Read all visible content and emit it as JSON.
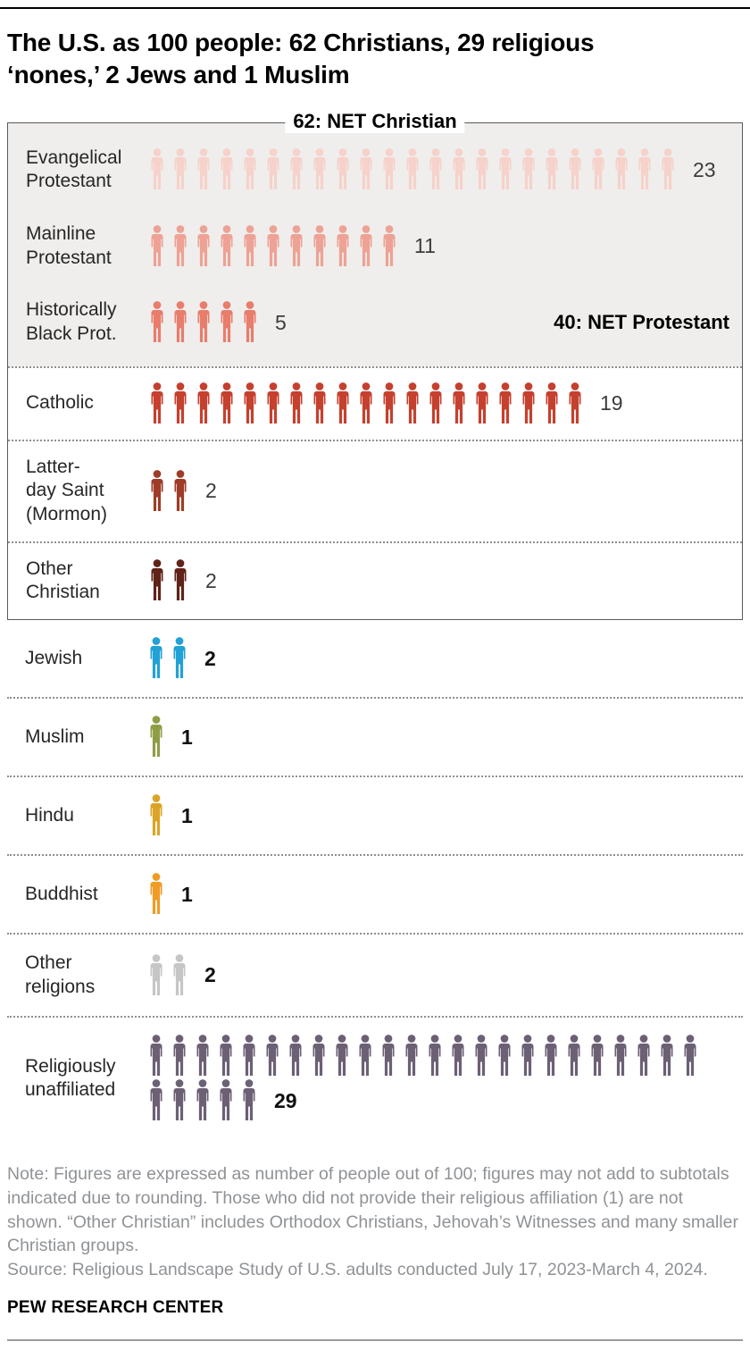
{
  "header": {
    "title_line1": "The U.S. as 100 people: 62 Christians, 29 religious",
    "title_line2": "‘nones,’ 2 Jews and 1 Muslim"
  },
  "chart_data": {
    "type": "pictogram",
    "title": "The U.S. as 100 people: 62 Christians, 29 religious ‘nones,’ 2 Jews and 1 Muslim",
    "unit": "people out of 100",
    "net_labels": {
      "christian": "62: NET Christian",
      "protestant": "40: NET Protestant"
    },
    "net_values": {
      "christian": 62,
      "protestant": 40
    },
    "rows": [
      {
        "id": "evangelical-protestant",
        "label_lines": [
          "Evangelical",
          "Protestant"
        ],
        "value": 23,
        "color": "#f6d2ca",
        "section": "net-protestant",
        "value_bold": false
      },
      {
        "id": "mainline-protestant",
        "label_lines": [
          "Mainline",
          "Protestant"
        ],
        "value": 11,
        "color": "#eda295",
        "section": "net-protestant",
        "value_bold": false
      },
      {
        "id": "historically-black-protestant",
        "label_lines": [
          "Historically",
          "Black Prot."
        ],
        "value": 5,
        "color": "#e87d6c",
        "section": "net-protestant",
        "value_bold": false,
        "right_note": "protestant"
      },
      {
        "id": "catholic",
        "label_lines": [
          "Catholic"
        ],
        "value": 19,
        "color": "#c5402e",
        "section": "christian",
        "value_bold": false
      },
      {
        "id": "latter-day-saint",
        "label_lines": [
          "Latter-",
          "day Saint",
          "(Mormon)"
        ],
        "value": 2,
        "color": "#9e3c27",
        "section": "christian",
        "value_bold": false
      },
      {
        "id": "other-christian",
        "label_lines": [
          "Other",
          "Christian"
        ],
        "value": 2,
        "color": "#5f2318",
        "section": "christian",
        "value_bold": false
      },
      {
        "id": "jewish",
        "label_lines": [
          "Jewish"
        ],
        "value": 2,
        "color": "#21a1d6",
        "section": "outside",
        "value_bold": true
      },
      {
        "id": "muslim",
        "label_lines": [
          "Muslim"
        ],
        "value": 1,
        "color": "#8f9d45",
        "section": "outside",
        "value_bold": true
      },
      {
        "id": "hindu",
        "label_lines": [
          "Hindu"
        ],
        "value": 1,
        "color": "#dba426",
        "section": "outside",
        "value_bold": true
      },
      {
        "id": "buddhist",
        "label_lines": [
          "Buddhist"
        ],
        "value": 1,
        "color": "#f09b24",
        "section": "outside",
        "value_bold": true
      },
      {
        "id": "other-religions",
        "label_lines": [
          "Other",
          "religions"
        ],
        "value": 2,
        "color": "#c6c5c7",
        "section": "outside",
        "value_bold": true
      },
      {
        "id": "religiously-unaffiliated",
        "label_lines": [
          "Religiously",
          "unaffiliated"
        ],
        "value": 29,
        "color": "#6c6075",
        "section": "outside",
        "value_bold": true,
        "wrap_at": 24
      }
    ]
  },
  "footer": {
    "note": "Note: Figures are expressed as number of people out of 100; figures may not add to subtotals indicated due to rounding. Those who did not provide their religious affiliation (1) are not shown. “Other Christian” includes Orthodox Christians, Jehovah’s Witnesses and many smaller Christian groups.",
    "source": "Source: Religious Landscape Study of U.S. adults conducted July 17, 2023-March 4, 2024.",
    "brand": "PEW RESEARCH CENTER"
  }
}
